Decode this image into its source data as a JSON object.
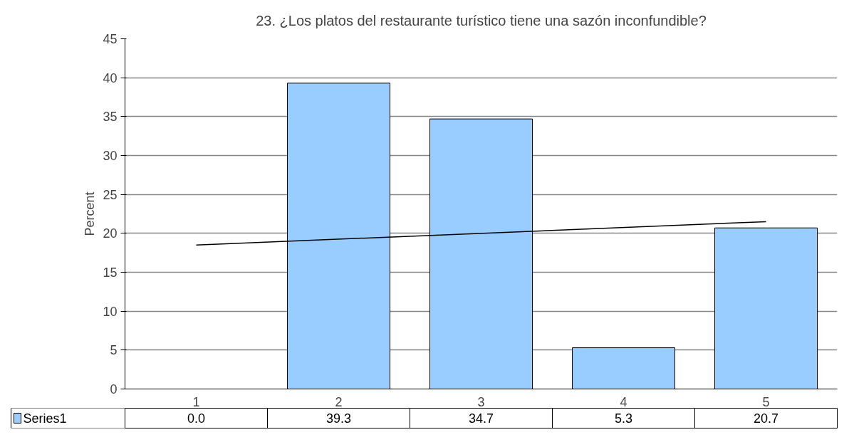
{
  "chart_data": {
    "type": "bar",
    "title": "23. ¿Los platos del restaurante turístico tiene una sazón inconfundible?",
    "ylabel": "Percent",
    "categories": [
      "1",
      "2",
      "3",
      "4",
      "5"
    ],
    "series": [
      {
        "name": "Series1",
        "color": "#99ccff",
        "values": [
          0.0,
          39.3,
          34.7,
          5.3,
          20.7
        ],
        "value_labels": [
          "0.0",
          "39.3",
          "34.7",
          "5.3",
          "20.7"
        ]
      },
      {
        "type": "line",
        "color": "#000000",
        "x": [
          "1",
          "5"
        ],
        "values": [
          18.5,
          21.5
        ]
      }
    ],
    "ylim": [
      0,
      45
    ],
    "yticks": [
      0,
      5,
      10,
      15,
      20,
      25,
      30,
      35,
      40,
      45
    ],
    "grid": "y",
    "legend": "bottom",
    "marker": "none"
  }
}
